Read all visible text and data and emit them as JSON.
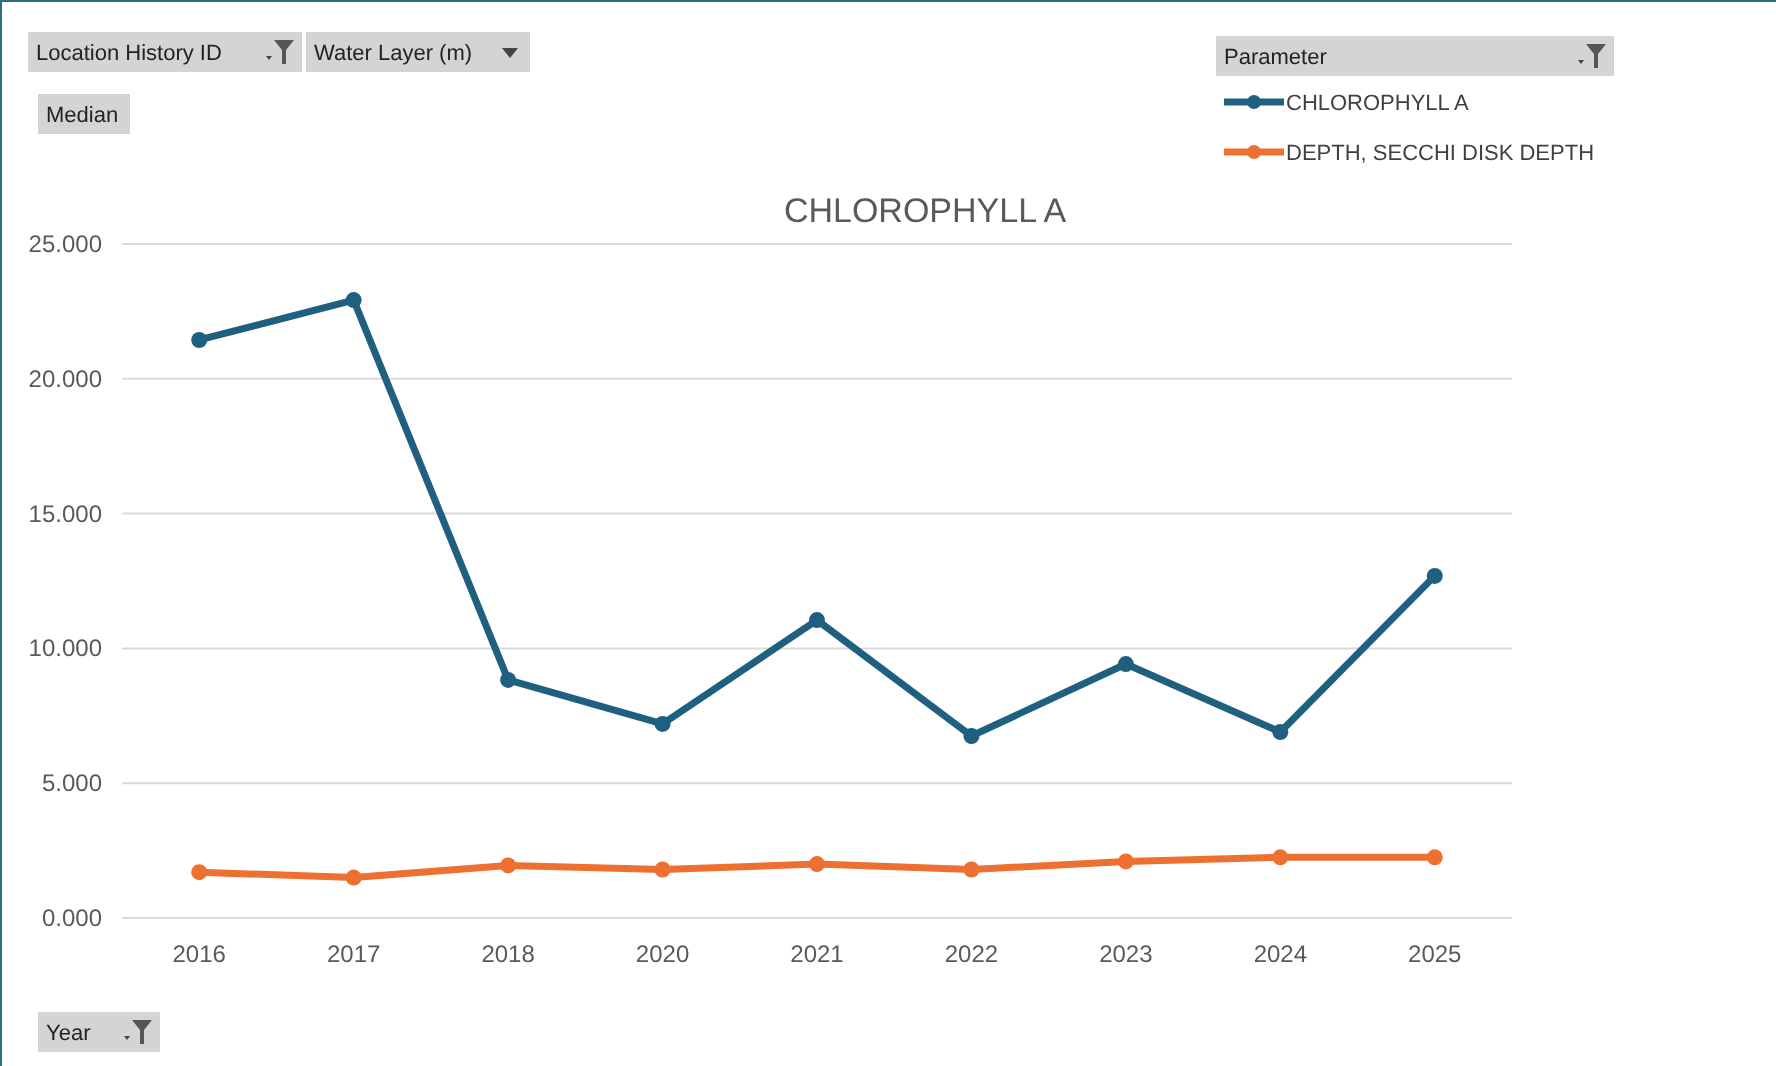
{
  "chart_data": {
    "type": "line",
    "title": "CHLOROPHYLL A",
    "legend_title": "Parameter",
    "annotations": [
      "Location History ID",
      "Water Layer (m)",
      "Median",
      "Year"
    ],
    "categories": [
      "2016",
      "2017",
      "2018",
      "2020",
      "2021",
      "2022",
      "2023",
      "2024",
      "2025"
    ],
    "series": [
      {
        "name": "CHLOROPHYLL A",
        "color": "#1f5f7f",
        "values": [
          21.44,
          22.92,
          8.83,
          7.2,
          11.05,
          6.75,
          9.42,
          6.9,
          12.69
        ]
      },
      {
        "name": "DEPTH, SECCHI DISK DEPTH",
        "color": "#ed7030",
        "values": [
          1.7,
          1.5,
          1.95,
          1.8,
          2.0,
          1.8,
          2.1,
          2.25,
          2.25
        ]
      }
    ],
    "ylim": [
      0,
      25
    ],
    "yticks": [
      {
        "value": 0,
        "label": "0.000"
      },
      {
        "value": 5,
        "label": "5.000"
      },
      {
        "value": 10,
        "label": "10.000"
      },
      {
        "value": 15,
        "label": "15.000"
      },
      {
        "value": 20,
        "label": "20.000"
      },
      {
        "value": 25,
        "label": "25.000"
      }
    ],
    "grid": "y",
    "legend": "top right",
    "marker": "circle",
    "line_style": "solid"
  }
}
